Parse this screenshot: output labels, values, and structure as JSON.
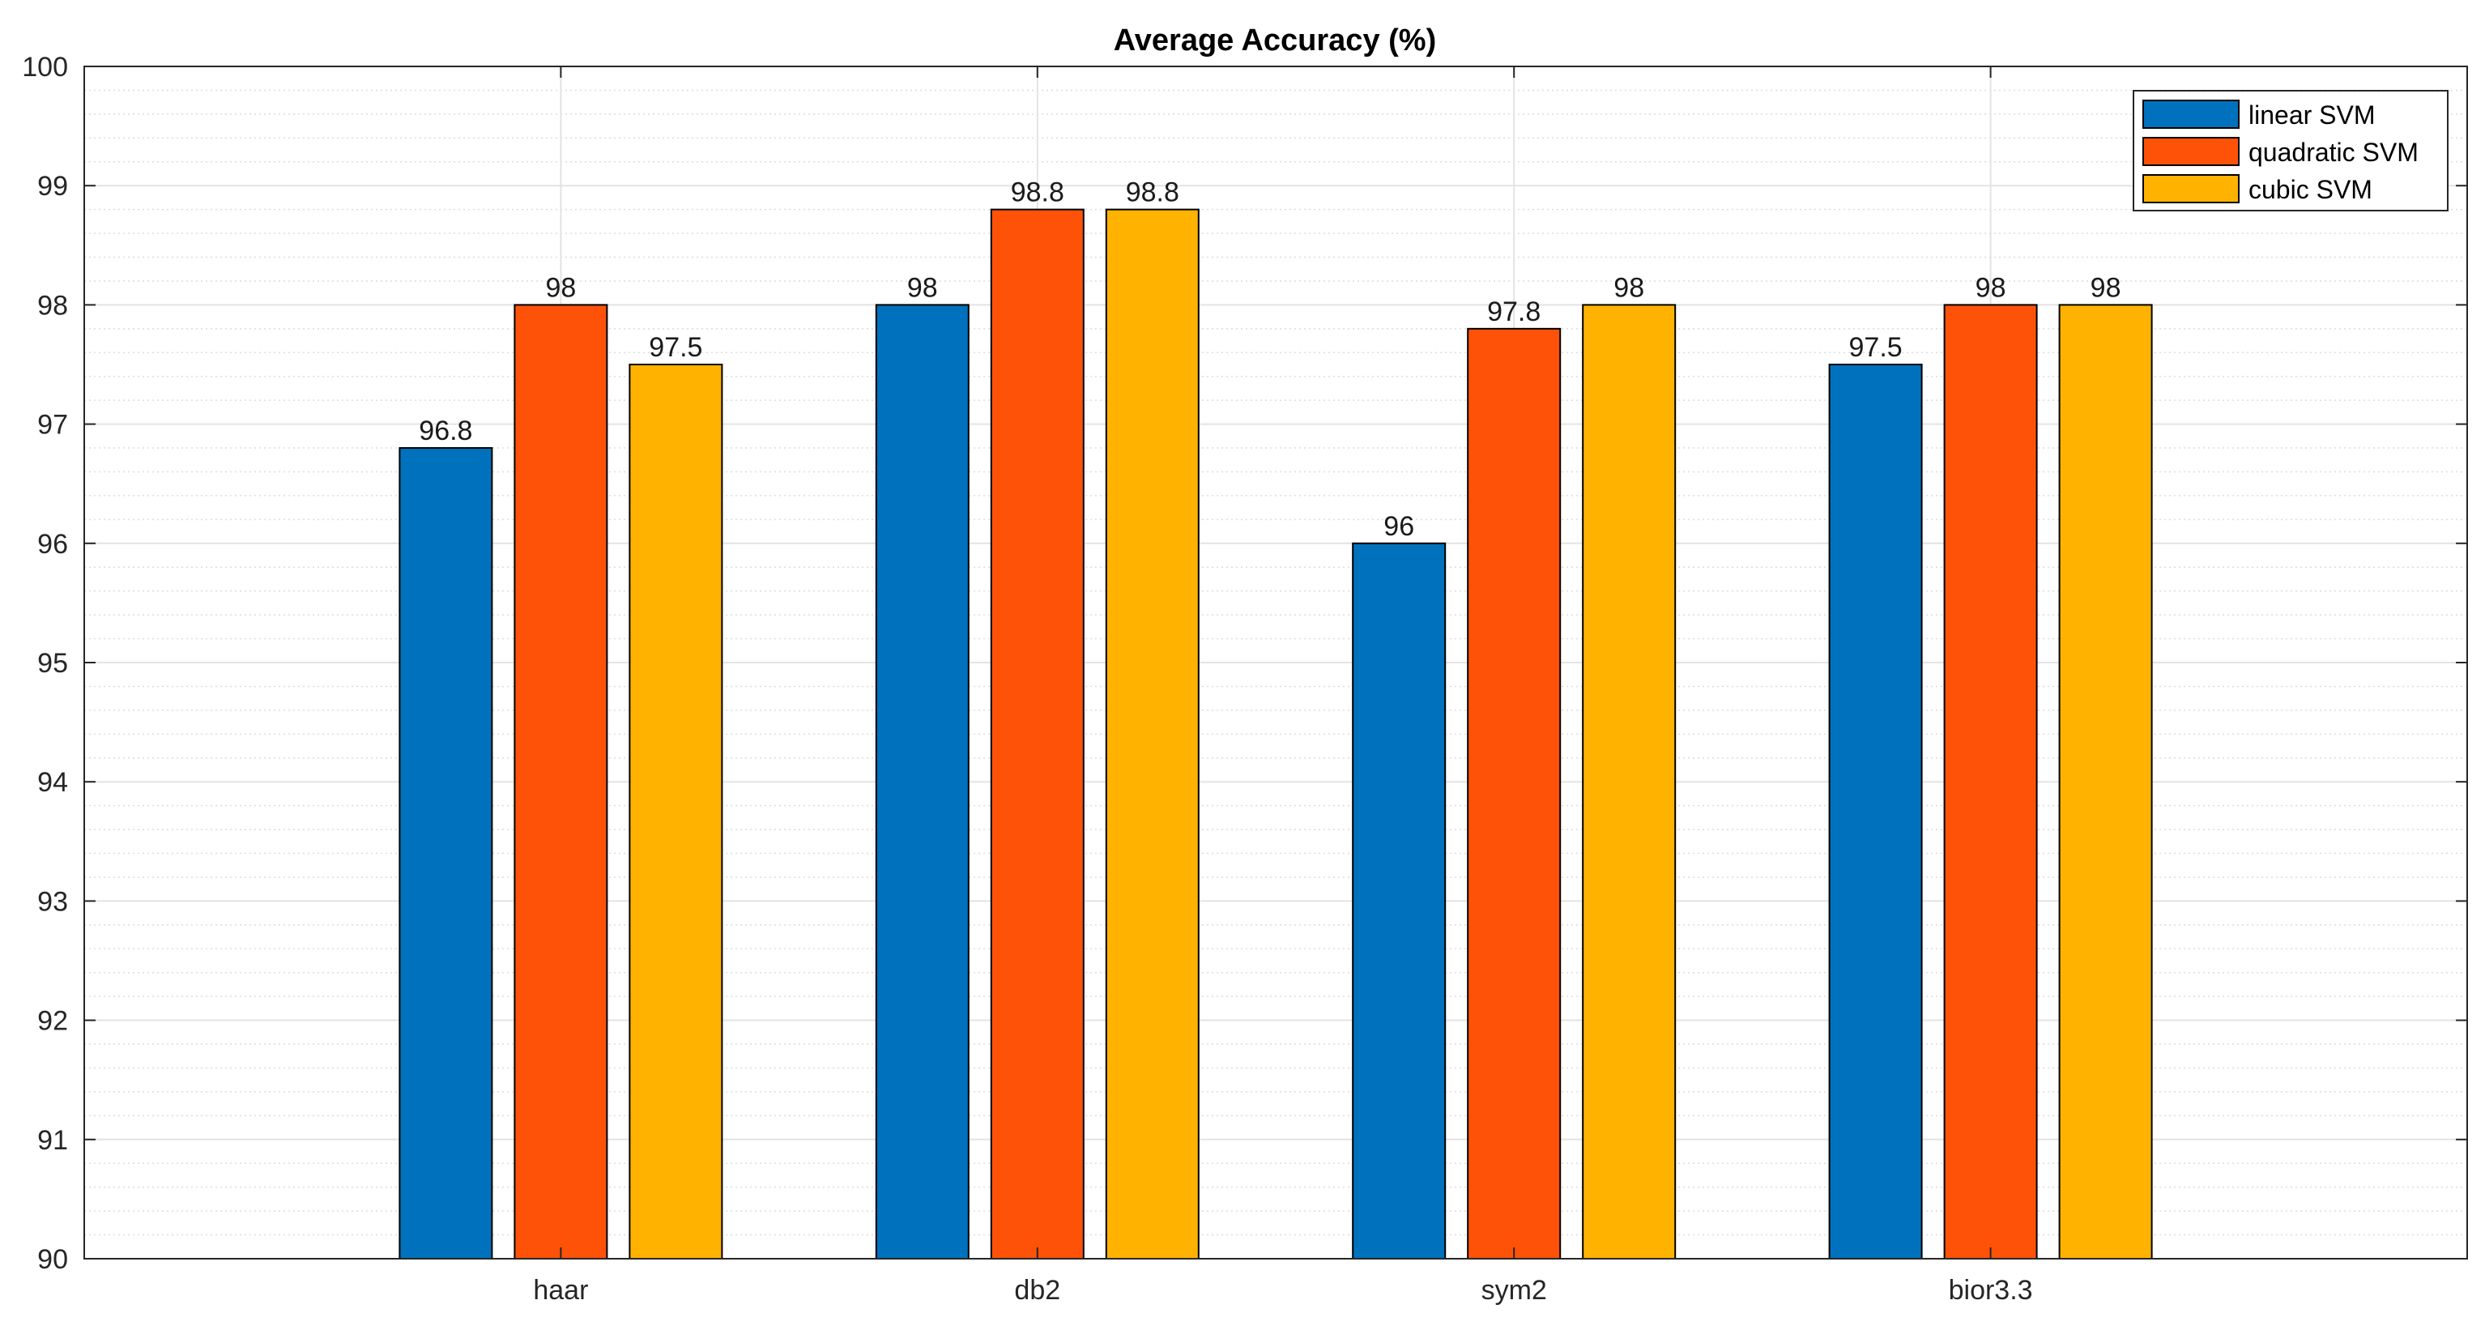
{
  "chart_data": {
    "type": "bar",
    "title": "Average Accuracy (%)",
    "xlabel": "",
    "ylabel": "",
    "categories": [
      "haar",
      "db2",
      "sym2",
      "bior3.3"
    ],
    "series": [
      {
        "name": "linear SVM",
        "color": "#0072BD",
        "values": [
          96.8,
          98,
          96,
          97.5
        ]
      },
      {
        "name": "quadratic SVM",
        "color": "#FF5209",
        "values": [
          98,
          98.8,
          97.8,
          98
        ]
      },
      {
        "name": "cubic SVM",
        "color": "#FFB300",
        "values": [
          97.5,
          98.8,
          98,
          98
        ]
      }
    ],
    "ylim": [
      90,
      100
    ],
    "yticks": [
      "90",
      "91",
      "92",
      "93",
      "94",
      "95",
      "96",
      "97",
      "98",
      "99",
      "100"
    ],
    "data_labels": [
      [
        "96.8",
        "98",
        "96",
        "97.5"
      ],
      [
        "98",
        "98.8",
        "97.8",
        "98"
      ],
      [
        "97.5",
        "98.8",
        "98",
        "98"
      ]
    ],
    "grid": "on",
    "minor_grid": "on",
    "legend_position": "top-right"
  }
}
